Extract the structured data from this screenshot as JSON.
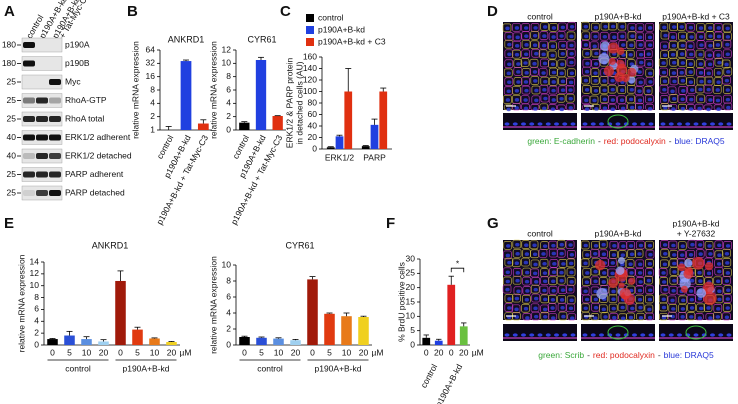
{
  "panel_labels": [
    "A",
    "B",
    "C",
    "D",
    "E",
    "F",
    "G"
  ],
  "blot": {
    "lanes": [
      [
        "control"
      ],
      [
        "p190A+B-kd"
      ],
      [
        "p190A+B-kd",
        "+ Tat-Myc-C3"
      ]
    ],
    "rows": [
      {
        "label": "p190A",
        "mw": 180
      },
      {
        "label": "p190B",
        "mw": 180
      },
      {
        "label": "Myc",
        "mw": 25
      },
      {
        "label": "RhoA-GTP",
        "mw": 25
      },
      {
        "label": "RhoA total",
        "mw": 25
      },
      {
        "label": "ERK1/2 adherent",
        "mw": 40
      },
      {
        "label": "ERK1/2 detached",
        "mw": 40
      },
      {
        "label": "PARP adherent",
        "mw": 25
      },
      {
        "label": "PARP detached",
        "mw": 25
      }
    ]
  },
  "micrographs_d": {
    "columns": [
      [
        "control"
      ],
      [
        "p190A+B-kd"
      ],
      [
        "p190A+B-kd + C3"
      ]
    ],
    "legend": [
      {
        "text": "green: E-cadherin",
        "color": "#3aa83a"
      },
      {
        "text": "-",
        "color": "#333333"
      },
      {
        "text": "red: podocalyxin",
        "color": "#e02a20"
      },
      {
        "text": "-",
        "color": "#333333"
      },
      {
        "text": "blue: DRAQ5",
        "color": "#2838d8"
      }
    ]
  },
  "micrographs_g": {
    "columns": [
      [
        "control"
      ],
      [
        "p190A+B-kd"
      ],
      [
        "p190A+B-kd",
        "+ Y-27632"
      ]
    ],
    "legend": [
      {
        "text": "green: Scrib",
        "color": "#3aa83a"
      },
      {
        "text": "-",
        "color": "#333333"
      },
      {
        "text": "red: podocalyxin",
        "color": "#e02a20"
      },
      {
        "text": "-",
        "color": "#333333"
      },
      {
        "text": "blue: DRAQ5",
        "color": "#2838d8"
      }
    ]
  },
  "chart_data": [
    {
      "type": "bar",
      "title": "ANKRD1",
      "ylabel": [
        "relative mRNA expression"
      ],
      "categories": [
        "control",
        "p190A+B-kd",
        "p190A+B-kd + Tat-Myc-C3"
      ],
      "values": [
        1,
        36,
        1.4
      ],
      "errors": [
        0.2,
        2,
        0.3
      ],
      "colors": [
        "#000000",
        "#2040e0",
        "#e03010"
      ],
      "log_scale": true,
      "ylim": [
        1,
        64
      ],
      "yticks": [
        1,
        2,
        4,
        8,
        16,
        32,
        64
      ]
    },
    {
      "type": "bar",
      "title": "CYR61",
      "ylabel": [
        "relative mRNA expression"
      ],
      "categories": [
        "control",
        "p190A+B-kd",
        "p190A+B-kd + Tat-Myc-C3"
      ],
      "values": [
        1.1,
        10.5,
        2.1
      ],
      "errors": [
        0.15,
        0.4,
        0.05
      ],
      "colors": [
        "#000000",
        "#2040e0",
        "#e03010"
      ],
      "ylim": [
        0,
        12
      ],
      "yticks": [
        0,
        2,
        4,
        6,
        8,
        10,
        12
      ]
    },
    {
      "type": "grouped_bar",
      "ylabel": [
        "ERK1/2 & PARP protein",
        "in detached cells (AU)"
      ],
      "categories": [
        "ERK1/2",
        "PARP"
      ],
      "series": [
        {
          "name": "control",
          "color": "#000000",
          "values": [
            3,
            5
          ],
          "errors": [
            1,
            1
          ]
        },
        {
          "name": "p190A+B-kd",
          "color": "#2040e0",
          "values": [
            22,
            42
          ],
          "errors": [
            2,
            10
          ]
        },
        {
          "name": "p190A+B-kd + C3",
          "color": "#e03010",
          "values": [
            100,
            100
          ],
          "errors": [
            40,
            6
          ]
        }
      ],
      "legend": "top",
      "ylim": [
        0,
        160
      ],
      "yticks": [
        0,
        20,
        40,
        60,
        80,
        100,
        120,
        140,
        160
      ]
    },
    {
      "type": "bar",
      "title": "ANKRD1",
      "ylabel": [
        "relative mRNA expression"
      ],
      "categories": [
        0,
        5,
        10,
        20,
        0,
        5,
        10,
        20
      ],
      "groups": [
        "control",
        "p190A+B-kd"
      ],
      "unit": "µM",
      "values": [
        1.0,
        1.6,
        1.0,
        0.6,
        10.8,
        2.6,
        1.1,
        0.5
      ],
      "errors": [
        0.1,
        0.7,
        0.4,
        0.3,
        1.7,
        0.4,
        0.1,
        0.1
      ],
      "colors": [
        "#000000",
        "#2a4fd6",
        "#5b8fe0",
        "#9fd0f0",
        "#a01a0a",
        "#e03a10",
        "#e87a1a",
        "#f0d020"
      ],
      "ylim": [
        0,
        14
      ],
      "yticks": [
        0,
        2,
        4,
        6,
        8,
        10,
        12,
        14
      ]
    },
    {
      "type": "bar",
      "title": "CYR61",
      "ylabel": [
        "relative mRNA expression"
      ],
      "categories": [
        0,
        5,
        10,
        20,
        0,
        5,
        10,
        20
      ],
      "groups": [
        "control",
        "p190A+B-kd"
      ],
      "unit": "µM",
      "values": [
        1.0,
        0.9,
        0.8,
        0.6,
        8.2,
        3.9,
        3.6,
        3.5
      ],
      "errors": [
        0.1,
        0.1,
        0.1,
        0.1,
        0.35,
        0.1,
        0.4,
        0.1
      ],
      "colors": [
        "#000000",
        "#2a4fd6",
        "#5b8fe0",
        "#9fd0f0",
        "#a01a0a",
        "#e03a10",
        "#e87a1a",
        "#f0d020"
      ],
      "ylim": [
        0,
        10
      ],
      "yticks": [
        0,
        2,
        4,
        6,
        8,
        10
      ]
    },
    {
      "type": "bar",
      "ylabel": [
        "% BrdU positive cells"
      ],
      "categories": [
        0,
        20,
        0,
        20
      ],
      "groups": [
        "control",
        "p190A+B-kd"
      ],
      "unit": "µM",
      "values": [
        2.5,
        1.5,
        21,
        6.5
      ],
      "errors": [
        1,
        0.5,
        3,
        1.2
      ],
      "colors": [
        "#000000",
        "#2040e0",
        "#e02020",
        "#6ac040"
      ],
      "annotation": "*",
      "ylim": [
        0,
        30
      ],
      "yticks": [
        0,
        5,
        10,
        15,
        20,
        25,
        30
      ]
    }
  ]
}
